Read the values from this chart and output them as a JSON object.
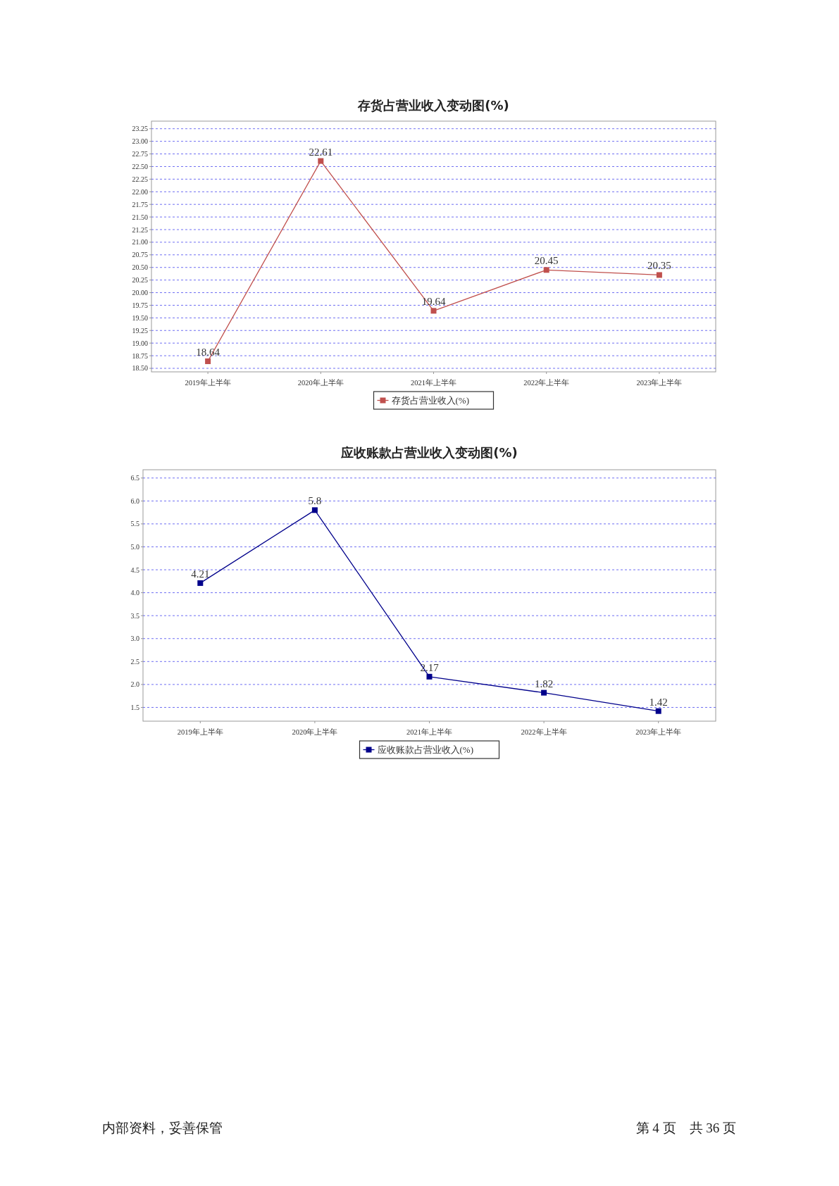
{
  "chart_data": [
    {
      "type": "line",
      "title": "存货占营业收入变动图(%)",
      "categories": [
        "2019年上半年",
        "2020年上半年",
        "2021年上半年",
        "2022年上半年",
        "2023年上半年"
      ],
      "series": [
        {
          "name": "存货占营业收入(%)",
          "color": "#c0504d",
          "values": [
            18.64,
            22.61,
            19.64,
            20.45,
            20.35
          ]
        }
      ],
      "ylim": [
        18.43,
        23.4
      ],
      "yticks": [
        {
          "value": 18.5,
          "label": "18.50"
        },
        18.75,
        {
          "value": 19,
          "label": "19.00"
        },
        19.25,
        {
          "value": 19.5,
          "label": "19.50"
        },
        19.75,
        {
          "value": 20,
          "label": "20.00"
        },
        20.25,
        {
          "value": 20.5,
          "label": "20.50"
        },
        20.75,
        {
          "value": 21,
          "label": "21.00"
        },
        21.25,
        {
          "value": 21.5,
          "label": "21.50"
        },
        21.75,
        {
          "value": 22,
          "label": "22.00"
        },
        22.25,
        {
          "value": 22.5,
          "label": "22.50"
        },
        22.75,
        {
          "value": 23,
          "label": "23.00"
        },
        23.25
      ],
      "grid": "y",
      "legend": "bottom",
      "marker": "square",
      "data_labels": true
    },
    {
      "type": "line",
      "title": "应收账款占营业收入变动图(%)",
      "categories": [
        "2019年上半年",
        "2020年上半年",
        "2021年上半年",
        "2022年上半年",
        "2023年上半年"
      ],
      "series": [
        {
          "name": "应收账款占营业收入(%)",
          "color": "#00008b",
          "values": [
            4.21,
            5.8,
            2.17,
            1.82,
            1.42
          ]
        }
      ],
      "ylim": [
        1.2,
        6.68
      ],
      "yticks": [
        1.5,
        {
          "value": 2,
          "label": "2.0"
        },
        2.5,
        {
          "value": 3,
          "label": "3.0"
        },
        3.5,
        {
          "value": 4,
          "label": "4.0"
        },
        4.5,
        {
          "value": 5,
          "label": "5.0"
        },
        5.5,
        {
          "value": 6,
          "label": "6.0"
        },
        6.5
      ],
      "grid": "y",
      "legend": "bottom",
      "marker": "square",
      "data_labels": true,
      "annotations": [
        "内部资料，妥善保管",
        "第 4 页　共 36 页"
      ]
    }
  ]
}
